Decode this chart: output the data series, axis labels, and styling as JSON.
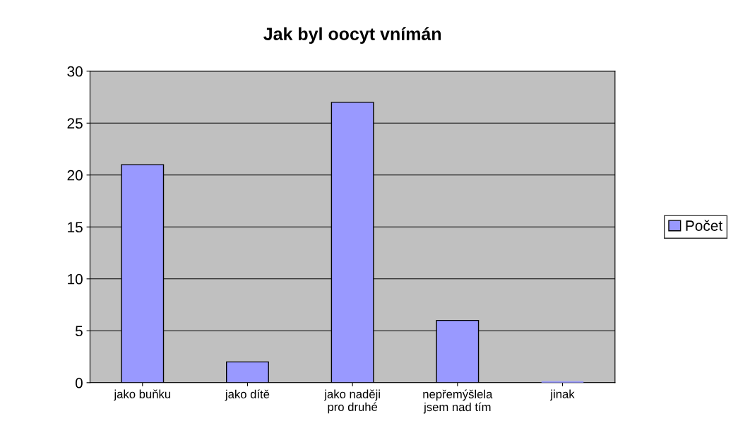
{
  "chart_data": {
    "type": "bar",
    "title": "Jak byl oocyt vnímán",
    "categories": [
      "jako buňku",
      "jako dítě",
      "jako naději\npro druhé",
      "nepřemýšlela\njsem nad tím",
      "jinak"
    ],
    "series": [
      {
        "name": "Počet",
        "color": "#9999ff",
        "values": [
          21,
          2,
          27,
          6,
          0
        ]
      }
    ],
    "ylim": [
      0,
      30
    ],
    "yticks": [
      0,
      5,
      10,
      15,
      20,
      25,
      30
    ],
    "grid": "y",
    "legend": "right"
  }
}
